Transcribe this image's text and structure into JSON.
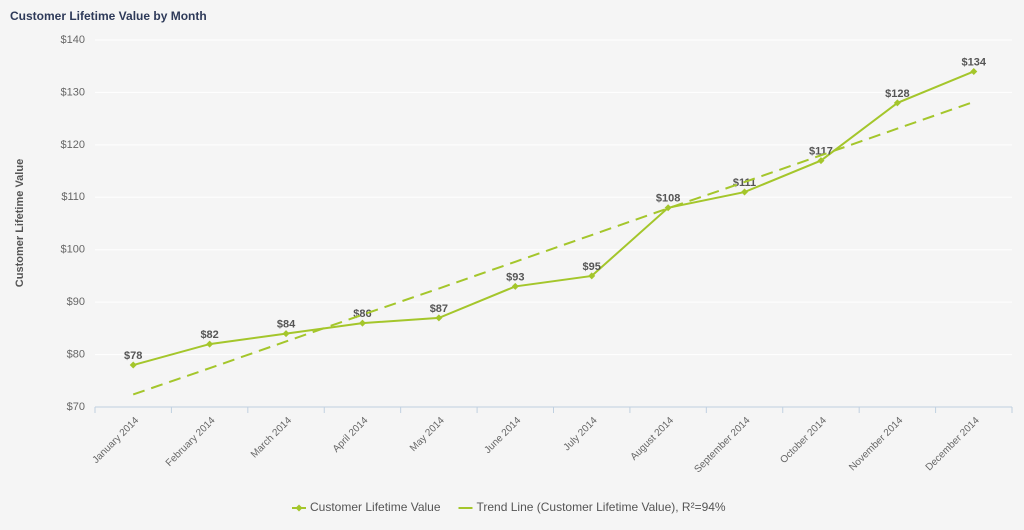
{
  "chart_data": {
    "type": "line",
    "title": "Customer Lifetime Value by Month",
    "y_label": "Customer Lifetime Value",
    "categories": [
      "January 2014",
      "February 2014",
      "March 2014",
      "April 2014",
      "May 2014",
      "June 2014",
      "July 2014",
      "August 2014",
      "September 2014",
      "October 2014",
      "November 2014",
      "December 2014"
    ],
    "series": [
      {
        "name": "Customer Lifetime Value",
        "color": "#a4c62b",
        "dashed": false,
        "markers": true,
        "values": [
          78,
          82,
          84,
          86,
          87,
          93,
          95,
          108,
          111,
          117,
          128,
          134
        ],
        "value_labels": [
          "$78",
          "$82",
          "$84",
          "$86",
          "$87",
          "$93",
          "$95",
          "$108",
          "$111",
          "$117",
          "$128",
          "$134"
        ]
      },
      {
        "name": "Trend Line (Customer Lifetime Value), R²=94%",
        "color": "#a4c62b",
        "dashed": true,
        "markers": false,
        "values": [
          72.4,
          77.4,
          82.5,
          87.6,
          92.6,
          97.7,
          102.8,
          107.9,
          112.9,
          118.0,
          123.1,
          128.2
        ]
      }
    ],
    "ylim": [
      70,
      140
    ],
    "yticks": [
      {
        "value": 70,
        "label": "$70"
      },
      {
        "value": 80,
        "label": "$80"
      },
      {
        "value": 90,
        "label": "$90"
      },
      {
        "value": 100,
        "label": "$100"
      },
      {
        "value": 110,
        "label": "$110"
      },
      {
        "value": 120,
        "label": "$120"
      },
      {
        "value": 130,
        "label": "$130"
      },
      {
        "value": 140,
        "label": "$140"
      }
    ],
    "grid": true,
    "legend": "bottom"
  }
}
